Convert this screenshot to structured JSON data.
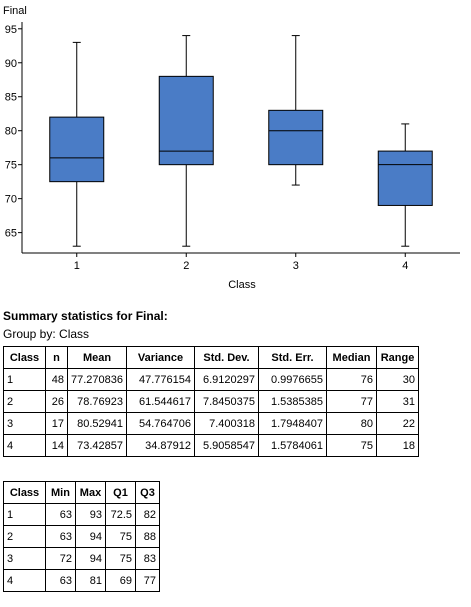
{
  "chart_data": {
    "type": "boxplot",
    "ylabel": "Final",
    "xlabel": "Class",
    "categories": [
      "1",
      "2",
      "3",
      "4"
    ],
    "ylim": [
      62,
      96
    ],
    "yticks": [
      65,
      70,
      75,
      80,
      85,
      90,
      95
    ],
    "boxes": [
      {
        "category": "1",
        "min": 63,
        "q1": 72.5,
        "median": 76,
        "q3": 82,
        "max": 93
      },
      {
        "category": "2",
        "min": 63,
        "q1": 75,
        "median": 77,
        "q3": 88,
        "max": 94
      },
      {
        "category": "3",
        "min": 72,
        "q1": 75,
        "median": 80,
        "q3": 83,
        "max": 94
      },
      {
        "category": "4",
        "min": 63,
        "q1": 69,
        "median": 75,
        "q3": 77,
        "max": 81
      }
    ],
    "box_color": "#4a7cc6"
  },
  "summary": {
    "title": "Summary statistics for Final:",
    "group_by": "Group by: Class",
    "headers": [
      "Class",
      "n",
      "Mean",
      "Variance",
      "Std. Dev.",
      "Std. Err.",
      "Median",
      "Range"
    ],
    "rows": [
      [
        "1",
        "48",
        "77.270836",
        "47.776154",
        "6.9120297",
        "0.9976655",
        "76",
        "30"
      ],
      [
        "2",
        "26",
        "78.76923",
        "61.544617",
        "7.8450375",
        "1.5385385",
        "77",
        "31"
      ],
      [
        "3",
        "17",
        "80.52941",
        "54.764706",
        "7.400318",
        "1.7948407",
        "80",
        "22"
      ],
      [
        "4",
        "14",
        "73.42857",
        "34.87912",
        "5.9058547",
        "1.5784061",
        "75",
        "18"
      ]
    ]
  },
  "quartiles": {
    "headers": [
      "Class",
      "Min",
      "Max",
      "Q1",
      "Q3"
    ],
    "rows": [
      [
        "1",
        "63",
        "93",
        "72.5",
        "82"
      ],
      [
        "2",
        "63",
        "94",
        "75",
        "88"
      ],
      [
        "3",
        "72",
        "94",
        "75",
        "83"
      ],
      [
        "4",
        "63",
        "81",
        "69",
        "77"
      ]
    ]
  }
}
